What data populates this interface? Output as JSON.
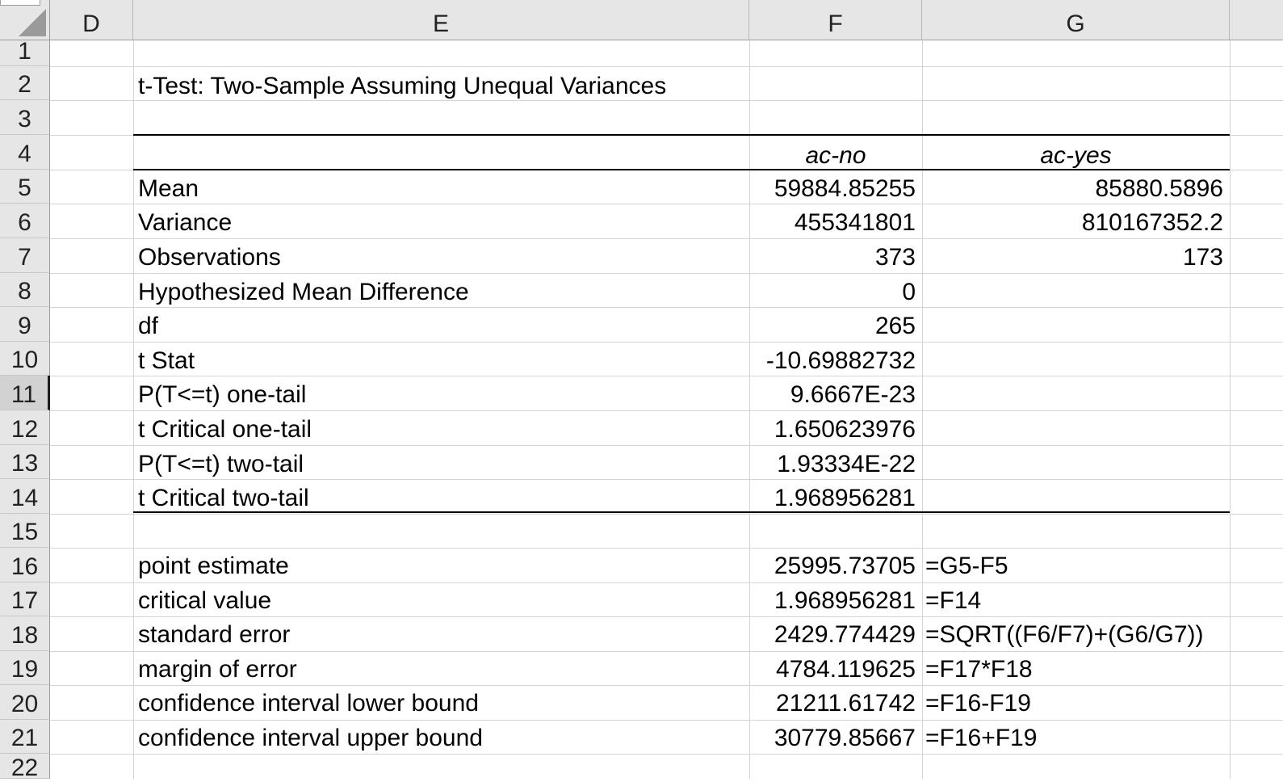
{
  "columns": [
    "D",
    "E",
    "F",
    "G"
  ],
  "rows": [
    "1",
    "2",
    "3",
    "4",
    "5",
    "6",
    "7",
    "8",
    "9",
    "10",
    "11",
    "12",
    "13",
    "14",
    "15",
    "16",
    "17",
    "18",
    "19",
    "20",
    "21",
    "22"
  ],
  "title": "t-Test: Two-Sample Assuming Unequal Variances",
  "headers": {
    "f": "ac-no",
    "g": "ac-yes"
  },
  "stats": [
    {
      "label": "Mean",
      "f": "59884.85255",
      "g": "85880.5896"
    },
    {
      "label": "Variance",
      "f": "455341801",
      "g": "810167352.2"
    },
    {
      "label": "Observations",
      "f": "373",
      "g": "173"
    },
    {
      "label": "Hypothesized Mean Difference",
      "f": "0",
      "g": ""
    },
    {
      "label": "df",
      "f": "265",
      "g": ""
    },
    {
      "label": "t Stat",
      "f": "-10.69882732",
      "g": ""
    },
    {
      "label": "P(T<=t) one-tail",
      "f": "9.6667E-23",
      "g": ""
    },
    {
      "label": "t Critical one-tail",
      "f": "1.650623976",
      "g": ""
    },
    {
      "label": "P(T<=t) two-tail",
      "f": "1.93334E-22",
      "g": ""
    },
    {
      "label": "t Critical two-tail",
      "f": "1.968956281",
      "g": ""
    }
  ],
  "ci": [
    {
      "label": "point estimate",
      "f": "25995.73705",
      "g": "=G5-F5"
    },
    {
      "label": "critical value",
      "f": "1.968956281",
      "g": "=F14"
    },
    {
      "label": "standard error",
      "f": "2429.774429",
      "g": "=SQRT((F6/F7)+(G6/G7))"
    },
    {
      "label": "margin of error",
      "f": "4784.119625",
      "g": "=F17*F18"
    },
    {
      "label": "confidence interval lower bound",
      "f": "21211.61742",
      "g": "=F16-F19"
    },
    {
      "label": "confidence interval upper bound",
      "f": "30779.85667",
      "g": "=F16+F19"
    }
  ],
  "selected_row": "11"
}
